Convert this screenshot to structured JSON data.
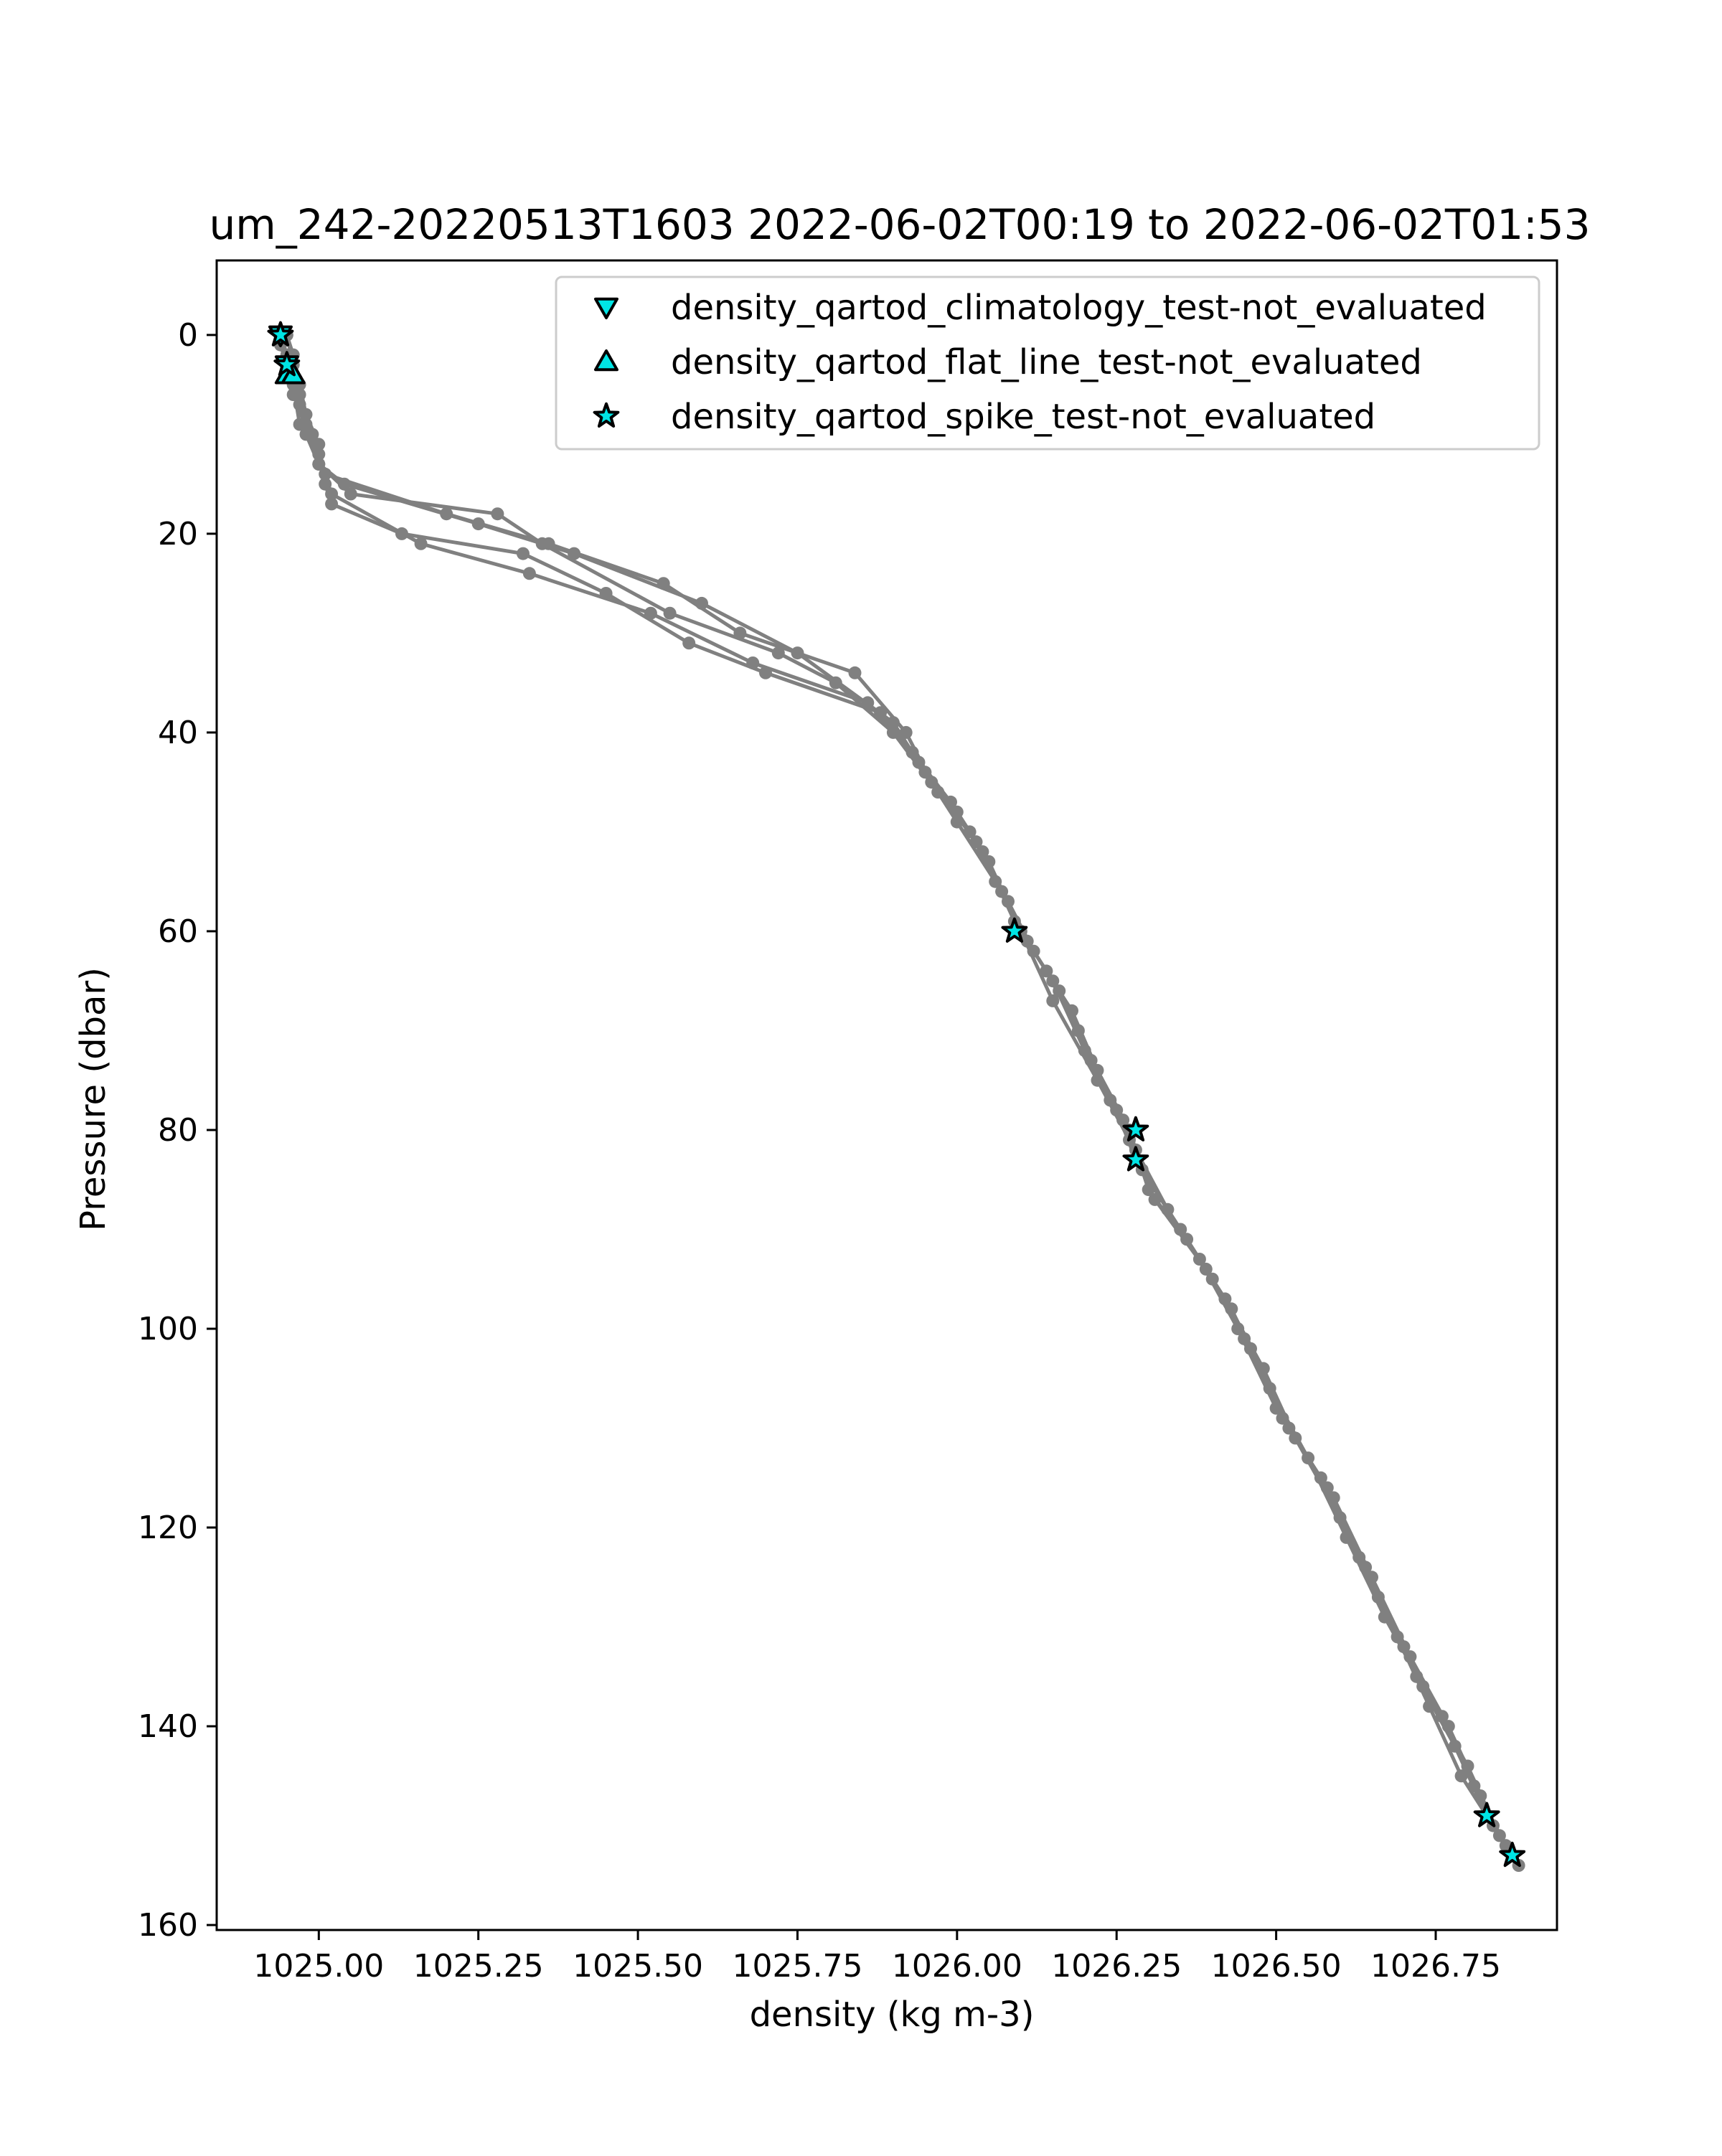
{
  "chart_data": {
    "type": "line",
    "title": "um_242-20220513T1603 2022-06-02T00:19 to 2022-06-02T01:53",
    "xlabel": "density (kg m-3)",
    "ylabel": "Pressure (dbar)",
    "xlim": [
      1024.84,
      1026.94
    ],
    "ylim": [
      160.5,
      -7.5
    ],
    "y_inverted": true,
    "grid": false,
    "legend_position": "top-right",
    "x_ticks": [
      1025.0,
      1025.25,
      1025.5,
      1025.75,
      1026.0,
      1026.25,
      1026.5,
      1026.75
    ],
    "x_tick_labels": [
      "1025.00",
      "1025.25",
      "1025.50",
      "1025.75",
      "1026.00",
      "1026.25",
      "1026.50",
      "1026.75"
    ],
    "y_ticks": [
      0,
      20,
      40,
      60,
      80,
      100,
      120,
      140,
      160
    ],
    "y_tick_labels": [
      "0",
      "20",
      "40",
      "60",
      "80",
      "100",
      "120",
      "140",
      "160"
    ],
    "colors": {
      "profile": "#808080",
      "flag_fill": "#00e5e5",
      "flag_edge": "#000000",
      "axes": "#000000"
    },
    "series": [
      {
        "marker": "circle",
        "color": "#808080",
        "profiles": [
          [
            [
              1024.94,
              0
            ],
            [
              1024.95,
              2
            ],
            [
              1024.96,
              4
            ],
            [
              1024.97,
              7
            ],
            [
              1024.98,
              10
            ],
            [
              1025.0,
              13
            ],
            [
              1025.04,
              15
            ],
            [
              1025.25,
              19
            ],
            [
              1025.4,
              22
            ],
            [
              1025.6,
              27
            ],
            [
              1025.75,
              32
            ],
            [
              1025.9,
              39
            ],
            [
              1025.95,
              44
            ],
            [
              1026.0,
              48
            ],
            [
              1026.05,
              53
            ],
            [
              1026.1,
              60
            ],
            [
              1026.15,
              65
            ],
            [
              1026.2,
              72
            ],
            [
              1026.25,
              78
            ],
            [
              1026.28,
              83
            ],
            [
              1026.35,
              90
            ],
            [
              1026.42,
              97
            ],
            [
              1026.48,
              104
            ],
            [
              1026.53,
              111
            ],
            [
              1026.6,
              119
            ],
            [
              1026.66,
              127
            ],
            [
              1026.72,
              135
            ],
            [
              1026.78,
              142
            ],
            [
              1026.83,
              149
            ],
            [
              1026.87,
              153
            ]
          ],
          [
            [
              1024.95,
              0
            ],
            [
              1024.96,
              3
            ],
            [
              1024.97,
              6
            ],
            [
              1024.99,
              10
            ],
            [
              1025.01,
              14
            ],
            [
              1025.2,
              18
            ],
            [
              1025.36,
              21
            ],
            [
              1025.54,
              25
            ],
            [
              1025.66,
              30
            ],
            [
              1025.84,
              34
            ],
            [
              1025.92,
              40
            ],
            [
              1025.96,
              45
            ],
            [
              1026.03,
              51
            ],
            [
              1026.08,
              57
            ],
            [
              1026.12,
              62
            ],
            [
              1026.18,
              68
            ],
            [
              1026.22,
              74
            ],
            [
              1026.27,
              80
            ],
            [
              1026.3,
              86
            ],
            [
              1026.38,
              93
            ],
            [
              1026.44,
              100
            ],
            [
              1026.5,
              108
            ],
            [
              1026.57,
              115
            ],
            [
              1026.63,
              123
            ],
            [
              1026.69,
              131
            ],
            [
              1026.74,
              138
            ],
            [
              1026.79,
              145
            ],
            [
              1026.84,
              150
            ],
            [
              1026.88,
              154
            ]
          ],
          [
            [
              1024.94,
              1
            ],
            [
              1024.95,
              3
            ],
            [
              1024.96,
              5
            ],
            [
              1024.97,
              9
            ],
            [
              1025.0,
              12
            ],
            [
              1025.02,
              16
            ],
            [
              1025.16,
              21
            ],
            [
              1025.33,
              24
            ],
            [
              1025.52,
              28
            ],
            [
              1025.68,
              33
            ],
            [
              1025.86,
              37
            ],
            [
              1025.93,
              42
            ],
            [
              1025.99,
              47
            ],
            [
              1026.04,
              52
            ],
            [
              1026.09,
              59
            ],
            [
              1026.14,
              64
            ],
            [
              1026.19,
              70
            ],
            [
              1026.24,
              77
            ],
            [
              1026.28,
              82
            ],
            [
              1026.33,
              88
            ],
            [
              1026.4,
              95
            ],
            [
              1026.46,
              102
            ],
            [
              1026.52,
              110
            ],
            [
              1026.59,
              117
            ],
            [
              1026.65,
              125
            ],
            [
              1026.71,
              133
            ],
            [
              1026.77,
              140
            ],
            [
              1026.82,
              147
            ]
          ],
          [
            [
              1024.95,
              0
            ],
            [
              1024.96,
              2
            ],
            [
              1024.97,
              5
            ],
            [
              1024.98,
              8
            ],
            [
              1025.0,
              11
            ],
            [
              1025.01,
              15
            ],
            [
              1025.02,
              17
            ],
            [
              1025.13,
              20
            ],
            [
              1025.32,
              22
            ],
            [
              1025.45,
              26
            ],
            [
              1025.58,
              31
            ],
            [
              1025.7,
              34
            ],
            [
              1025.88,
              38
            ],
            [
              1025.94,
              43
            ],
            [
              1026.0,
              49
            ],
            [
              1026.06,
              55
            ],
            [
              1026.11,
              61
            ],
            [
              1026.16,
              66
            ],
            [
              1026.21,
              73
            ],
            [
              1026.26,
              79
            ],
            [
              1026.29,
              84
            ],
            [
              1026.36,
              91
            ],
            [
              1026.43,
              98
            ],
            [
              1026.49,
              106
            ],
            [
              1026.55,
              113
            ],
            [
              1026.61,
              121
            ],
            [
              1026.67,
              129
            ],
            [
              1026.73,
              136
            ],
            [
              1026.8,
              144
            ],
            [
              1026.85,
              151
            ]
          ],
          [
            [
              1024.94,
              0
            ],
            [
              1024.95,
              3
            ],
            [
              1024.96,
              6
            ],
            [
              1024.98,
              9
            ],
            [
              1025.0,
              13
            ],
            [
              1025.05,
              16
            ],
            [
              1025.28,
              18
            ],
            [
              1025.35,
              21
            ],
            [
              1025.55,
              28
            ],
            [
              1025.72,
              32
            ],
            [
              1025.81,
              35
            ],
            [
              1025.9,
              40
            ],
            [
              1025.97,
              46
            ],
            [
              1026.02,
              50
            ],
            [
              1026.07,
              56
            ],
            [
              1026.1,
              60
            ],
            [
              1026.15,
              67
            ],
            [
              1026.22,
              75
            ],
            [
              1026.27,
              81
            ],
            [
              1026.31,
              87
            ],
            [
              1026.39,
              94
            ],
            [
              1026.45,
              101
            ],
            [
              1026.51,
              109
            ],
            [
              1026.58,
              116
            ],
            [
              1026.64,
              124
            ],
            [
              1026.7,
              132
            ],
            [
              1026.76,
              139
            ],
            [
              1026.81,
              146
            ],
            [
              1026.86,
              152
            ]
          ]
        ]
      }
    ],
    "flags": [
      {
        "name": "density_qartod_climatology_test-not_evaluated",
        "marker": "triangle-down",
        "points": [
          [
            1024.94,
            0
          ],
          [
            1024.95,
            3
          ]
        ]
      },
      {
        "name": "density_qartod_flat_line_test-not_evaluated",
        "marker": "triangle-up",
        "points": [
          [
            1024.95,
            4
          ],
          [
            1024.96,
            4
          ]
        ]
      },
      {
        "name": "density_qartod_spike_test-not_evaluated",
        "marker": "star",
        "points": [
          [
            1024.94,
            0
          ],
          [
            1024.95,
            3
          ],
          [
            1026.09,
            60
          ],
          [
            1026.28,
            80
          ],
          [
            1026.28,
            83
          ],
          [
            1026.83,
            149
          ],
          [
            1026.87,
            153
          ]
        ]
      }
    ]
  }
}
